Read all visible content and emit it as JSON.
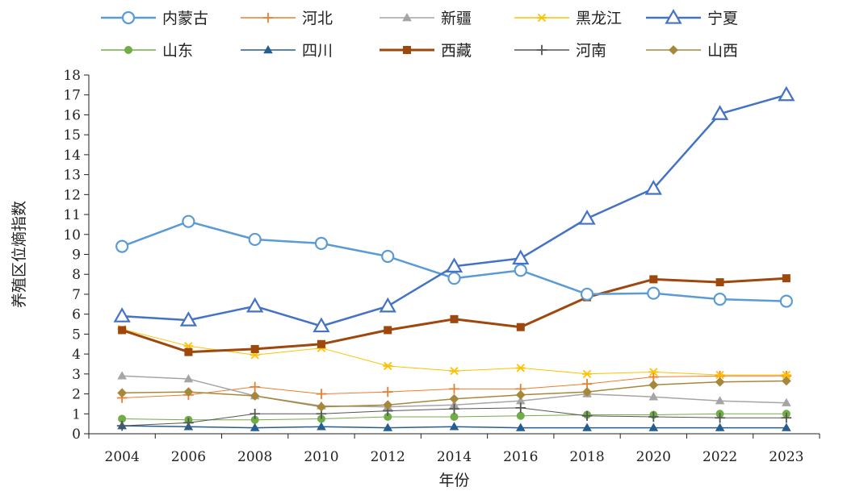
{
  "chart_data": {
    "type": "line",
    "xlabel": "年份",
    "ylabel": "养殖区位熵指数",
    "categories": [
      "2004",
      "2006",
      "2008",
      "2010",
      "2012",
      "2014",
      "2016",
      "2018",
      "2020",
      "2022",
      "2023"
    ],
    "ylim": [
      0,
      18
    ],
    "yticks": [
      "0",
      "1",
      "2",
      "3",
      "4",
      "5",
      "6",
      "7",
      "8",
      "9",
      "10",
      "11",
      "12",
      "13",
      "14",
      "15",
      "16",
      "17",
      "18"
    ],
    "grid": false,
    "legend_position": "top",
    "series": [
      {
        "name": "内蒙古",
        "color": "#5B9BD5",
        "marker": "circle-open",
        "width": 2.5,
        "values": [
          9.4,
          10.65,
          9.75,
          9.55,
          8.9,
          7.8,
          8.2,
          7.0,
          7.05,
          6.75,
          6.65
        ]
      },
      {
        "name": "河北",
        "color": "#ED7D31",
        "marker": "plus",
        "width": 1,
        "values": [
          1.8,
          1.95,
          2.35,
          2.0,
          2.1,
          2.25,
          2.25,
          2.5,
          2.85,
          2.9,
          2.9
        ]
      },
      {
        "name": "新疆",
        "color": "#A5A5A5",
        "marker": "triangle",
        "width": 1.5,
        "values": [
          2.9,
          2.75,
          1.9,
          1.4,
          1.35,
          1.45,
          1.65,
          2.0,
          1.85,
          1.65,
          1.55
        ]
      },
      {
        "name": "黑龙江",
        "color": "#FFC000",
        "marker": "asterisk",
        "width": 1,
        "values": [
          5.25,
          4.4,
          3.95,
          4.3,
          3.4,
          3.15,
          3.3,
          3.0,
          3.1,
          2.95,
          2.95
        ]
      },
      {
        "name": "宁夏",
        "color": "#4472C4",
        "marker": "triangle-open",
        "width": 2.5,
        "values": [
          5.9,
          5.7,
          6.4,
          5.4,
          6.4,
          8.4,
          8.8,
          10.8,
          12.3,
          16.05,
          17.0
        ]
      },
      {
        "name": "山东",
        "color": "#70AD47",
        "marker": "circle",
        "width": 1,
        "values": [
          0.75,
          0.7,
          0.7,
          0.75,
          0.85,
          0.85,
          0.9,
          0.95,
          0.95,
          1.0,
          1.0
        ]
      },
      {
        "name": "四川",
        "color": "#255E91",
        "marker": "triangle",
        "width": 1.5,
        "values": [
          0.4,
          0.35,
          0.3,
          0.35,
          0.3,
          0.35,
          0.3,
          0.3,
          0.3,
          0.3,
          0.3
        ]
      },
      {
        "name": "西藏",
        "color": "#9E480E",
        "marker": "square",
        "width": 3,
        "values": [
          5.2,
          4.1,
          4.25,
          4.5,
          5.2,
          5.75,
          5.35,
          6.85,
          7.75,
          7.6,
          7.8
        ]
      },
      {
        "name": "河南",
        "color": "#555555",
        "marker": "plus",
        "width": 1,
        "values": [
          0.4,
          0.55,
          1.0,
          1.0,
          1.15,
          1.25,
          1.3,
          0.9,
          0.85,
          0.8,
          0.8
        ]
      },
      {
        "name": "山西",
        "color": "#A5883A",
        "marker": "diamond",
        "width": 1.5,
        "values": [
          2.05,
          2.1,
          1.9,
          1.35,
          1.45,
          1.75,
          1.95,
          2.1,
          2.45,
          2.6,
          2.65
        ]
      }
    ]
  }
}
